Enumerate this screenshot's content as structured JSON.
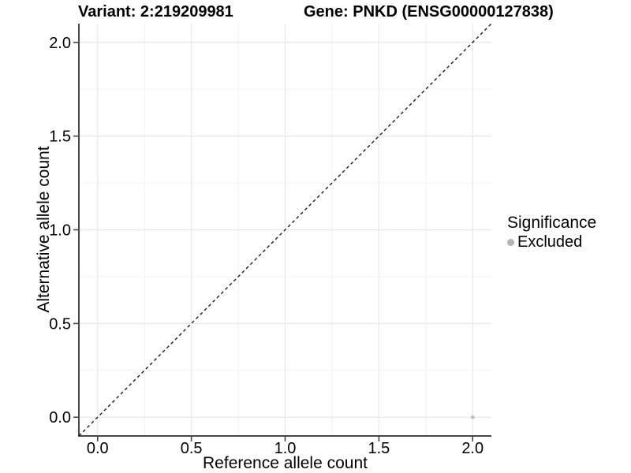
{
  "title": {
    "variant": "Variant: 2:219209981",
    "gene": "Gene: PNKD (ENSG00000127838)"
  },
  "axes": {
    "x_label": "Reference allele count",
    "y_label": "Alternative allele count"
  },
  "legend": {
    "title": "Significance",
    "items": [
      {
        "label": "Excluded",
        "color": "#b5b5b5"
      }
    ]
  },
  "colors": {
    "background": "#ffffff",
    "grid_major": "#e7e7e7",
    "grid_minor": "#f3f3f3",
    "axis_line": "#474747",
    "tick_mark": "#474747",
    "tick_label": "#000000",
    "dashed_line": "#1a1a1a",
    "point": "#bdbdbd"
  },
  "chart_data": {
    "type": "scatter",
    "title": "Variant: 2:219209981    Gene: PNKD (ENSG00000127838)",
    "xlabel": "Reference allele count",
    "ylabel": "Alternative allele count",
    "xlim": [
      -0.1,
      2.1
    ],
    "ylim": [
      -0.1,
      2.1
    ],
    "x_ticks": [
      0.0,
      0.5,
      1.0,
      1.5,
      2.0
    ],
    "y_ticks": [
      0.0,
      0.5,
      1.0,
      1.5,
      2.0
    ],
    "x_minor_ticks": [
      0.25,
      0.75,
      1.25,
      1.75
    ],
    "y_minor_ticks": [
      0.25,
      0.75,
      1.25,
      1.75
    ],
    "grid": true,
    "legend_position": "right",
    "series": [
      {
        "name": "Excluded",
        "color": "#bdbdbd",
        "points": [
          {
            "x": 2.0,
            "y": 0.0
          }
        ]
      }
    ],
    "reference_line": {
      "type": "identity",
      "style": "dashed",
      "from": -0.1,
      "to": 2.1
    }
  }
}
